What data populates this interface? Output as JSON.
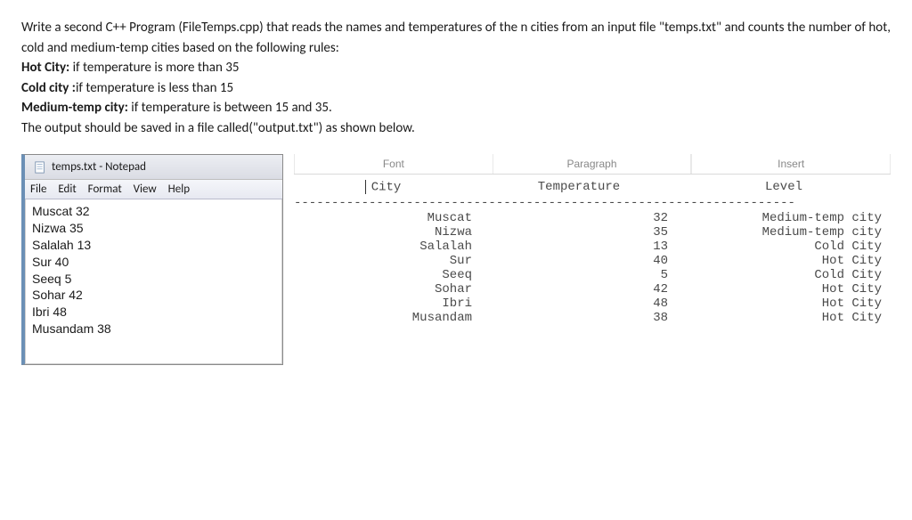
{
  "problem": {
    "intro1": "Write a second C++ Program (FileTemps.cpp) that reads the names and temperatures of the n cities from an input file \"temps.txt\" and counts the number of hot, cold and medium-temp cities based on the following rules:",
    "hot_label": "Hot City:",
    "hot_text": " if temperature is more than 35",
    "cold_label": "Cold city :",
    "cold_text": "if temperature is less than 15",
    "med_label": "Medium-temp city:",
    "med_text": " if temperature is between 15 and 35.",
    "output_line": "The output should be saved in a file called(\"output.txt\") as shown  below."
  },
  "notepad": {
    "title": "temps.txt - Notepad",
    "menu": [
      "File",
      "Edit",
      "Format",
      "View",
      "Help"
    ],
    "content": "Muscat 32\nNizwa 35\nSalalah 13\nSur 40\nSeeq 5\nSohar 42\nIbri 48\nMusandam 38"
  },
  "tabs": [
    "Font",
    "Paragraph",
    "Insert"
  ],
  "output": {
    "headers": {
      "city": "City",
      "temp": "Temperature",
      "level": "Level"
    },
    "dash": "-------------------------------------------------------------------",
    "rows": [
      {
        "city": "Muscat",
        "temp": "32",
        "level": "Medium-temp city"
      },
      {
        "city": "Nizwa",
        "temp": "35",
        "level": "Medium-temp city"
      },
      {
        "city": "Salalah",
        "temp": "13",
        "level": "Cold City"
      },
      {
        "city": "Sur",
        "temp": "40",
        "level": "Hot City"
      },
      {
        "city": "Seeq",
        "temp": "5",
        "level": "Cold City"
      },
      {
        "city": "Sohar",
        "temp": "42",
        "level": "Hot City"
      },
      {
        "city": "Ibri",
        "temp": "48",
        "level": "Hot City"
      },
      {
        "city": "Musandam",
        "temp": "38",
        "level": "Hot City"
      }
    ]
  }
}
